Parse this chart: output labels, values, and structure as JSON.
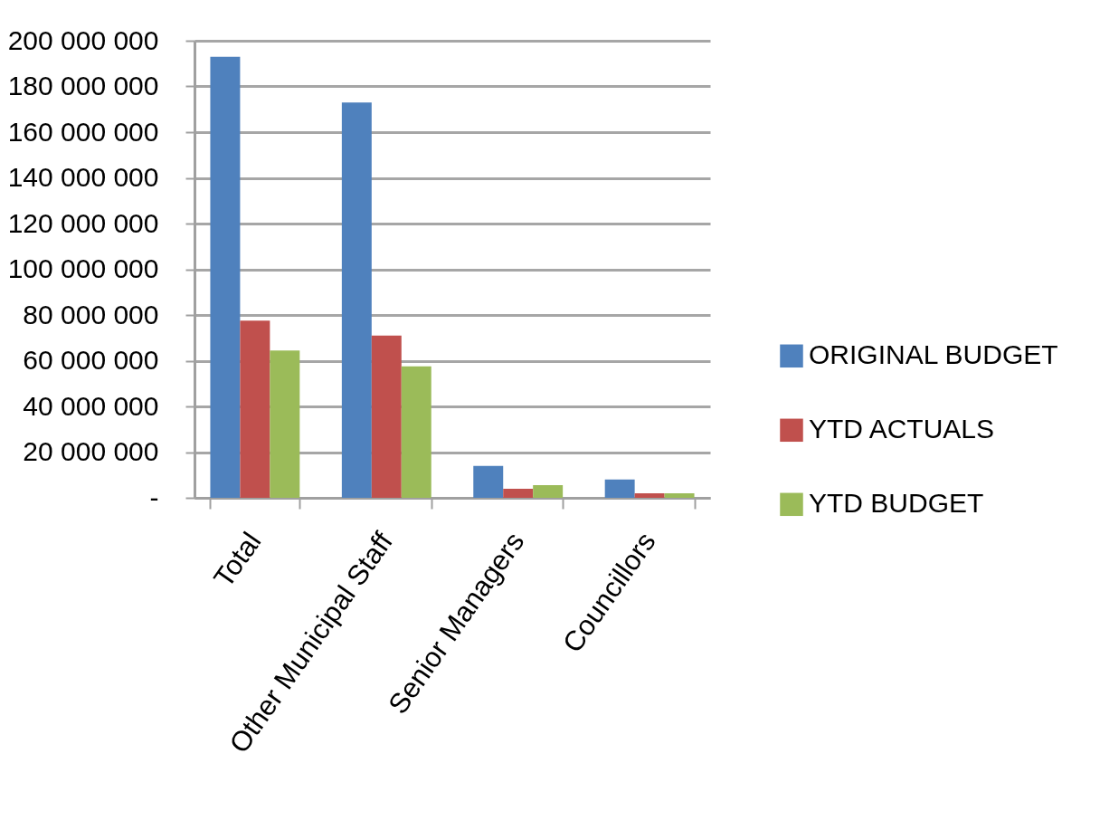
{
  "chart_data": {
    "type": "bar",
    "categories": [
      "Total",
      "Other Municipal Staff",
      "Senior Managers",
      "Councillors"
    ],
    "series": [
      {
        "name": "ORIGINAL BUDGET",
        "color": "#4f81bd",
        "values": [
          193000000,
          173000000,
          14000000,
          8000000
        ]
      },
      {
        "name": "YTD ACTUALS",
        "color": "#c0504d",
        "values": [
          77500000,
          71000000,
          4000000,
          2000000
        ]
      },
      {
        "name": "YTD BUDGET",
        "color": "#9bbb59",
        "values": [
          64500000,
          57500000,
          5500000,
          2000000
        ]
      }
    ],
    "ylim": [
      0,
      200000000
    ],
    "yticks": [
      {
        "value": 0,
        "label": "-"
      },
      {
        "value": 20000000,
        "label": "20 000 000"
      },
      {
        "value": 40000000,
        "label": "40 000 000"
      },
      {
        "value": 60000000,
        "label": "60 000 000"
      },
      {
        "value": 80000000,
        "label": "80 000 000"
      },
      {
        "value": 100000000,
        "label": "100 000 000"
      },
      {
        "value": 120000000,
        "label": "120 000 000"
      },
      {
        "value": 140000000,
        "label": "140 000 000"
      },
      {
        "value": 160000000,
        "label": "160 000 000"
      },
      {
        "value": 180000000,
        "label": "180 000 000"
      },
      {
        "value": 200000000,
        "label": "200 000 000"
      }
    ],
    "grid": "y",
    "legend": "right"
  }
}
